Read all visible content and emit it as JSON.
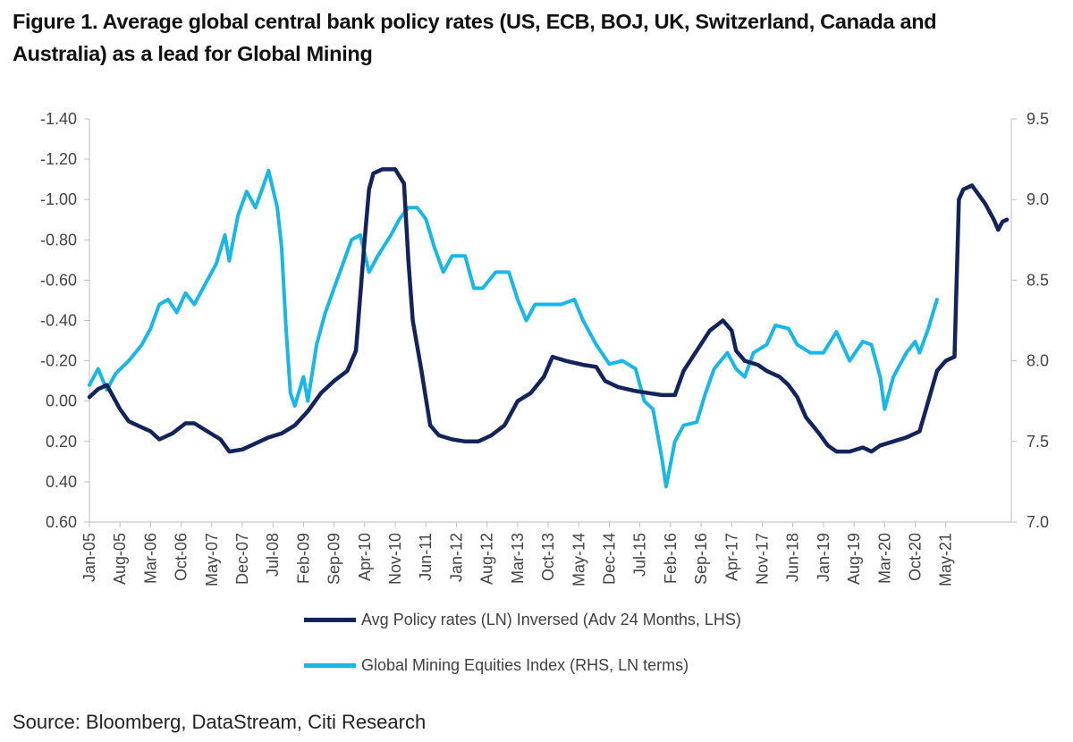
{
  "title_line1": "Figure 1. Average global central bank policy rates (US, ECB, BOJ, UK, Switzerland, Canada and",
  "title_line2": "Australia) as a lead for Global Mining",
  "source": "Source: Bloomberg, DataStream, Citi Research",
  "chart_data": {
    "type": "line",
    "title": "Figure 1. Average global central bank policy rates (US, ECB, BOJ, UK, Switzerland, Canada and Australia) as a lead for Global Mining",
    "x_tick_labels": [
      "Jan-05",
      "Aug-05",
      "Mar-06",
      "Oct-06",
      "May-07",
      "Dec-07",
      "Jul-08",
      "Feb-09",
      "Sep-09",
      "Apr-10",
      "Nov-10",
      "Jun-11",
      "Jan-12",
      "Aug-12",
      "Mar-13",
      "Oct-13",
      "May-14",
      "Dec-14",
      "Jul-15",
      "Feb-16",
      "Sep-16",
      "Apr-17",
      "Nov-17",
      "Jun-18",
      "Jan-19",
      "Aug-19",
      "Mar-20",
      "Oct-20",
      "May-21"
    ],
    "y_left": {
      "ticks": [
        "-1.40",
        "-1.20",
        "-1.00",
        "-0.80",
        "-0.60",
        "-0.40",
        "-0.20",
        "0.00",
        "0.20",
        "0.40",
        "0.60"
      ],
      "range": [
        -1.4,
        0.6
      ],
      "inverted": true
    },
    "y_right": {
      "ticks": [
        "9.5",
        "9.0",
        "8.5",
        "8.0",
        "7.5",
        "7.0"
      ],
      "range": [
        7.0,
        9.5
      ]
    },
    "series": [
      {
        "name": "Avg Policy rates (LN) Inversed (Adv 24 Months, LHS)",
        "color": "#13245b",
        "axis": "left",
        "points": [
          [
            "2005-01",
            -0.02
          ],
          [
            "2005-03",
            -0.06
          ],
          [
            "2005-05",
            -0.08
          ],
          [
            "2005-08",
            0.04
          ],
          [
            "2005-10",
            0.1
          ],
          [
            "2005-12",
            0.12
          ],
          [
            "2006-03",
            0.15
          ],
          [
            "2006-05",
            0.19
          ],
          [
            "2006-08",
            0.16
          ],
          [
            "2006-11",
            0.11
          ],
          [
            "2007-01",
            0.11
          ],
          [
            "2007-04",
            0.15
          ],
          [
            "2007-07",
            0.19
          ],
          [
            "2007-09",
            0.25
          ],
          [
            "2007-12",
            0.24
          ],
          [
            "2008-03",
            0.21
          ],
          [
            "2008-06",
            0.18
          ],
          [
            "2008-09",
            0.16
          ],
          [
            "2008-12",
            0.12
          ],
          [
            "2009-03",
            0.05
          ],
          [
            "2009-06",
            -0.04
          ],
          [
            "2009-09",
            -0.1
          ],
          [
            "2009-12",
            -0.15
          ],
          [
            "2010-02",
            -0.25
          ],
          [
            "2010-04",
            -0.8
          ],
          [
            "2010-05",
            -1.05
          ],
          [
            "2010-06",
            -1.13
          ],
          [
            "2010-08",
            -1.15
          ],
          [
            "2010-11",
            -1.15
          ],
          [
            "2011-01",
            -1.08
          ],
          [
            "2011-02",
            -0.7
          ],
          [
            "2011-03",
            -0.4
          ],
          [
            "2011-05",
            -0.15
          ],
          [
            "2011-07",
            0.12
          ],
          [
            "2011-09",
            0.17
          ],
          [
            "2011-12",
            0.19
          ],
          [
            "2012-03",
            0.2
          ],
          [
            "2012-06",
            0.2
          ],
          [
            "2012-09",
            0.17
          ],
          [
            "2012-12",
            0.12
          ],
          [
            "2013-03",
            0.0
          ],
          [
            "2013-06",
            -0.04
          ],
          [
            "2013-09",
            -0.12
          ],
          [
            "2013-11",
            -0.22
          ],
          [
            "2014-02",
            -0.2
          ],
          [
            "2014-06",
            -0.18
          ],
          [
            "2014-09",
            -0.17
          ],
          [
            "2014-11",
            -0.1
          ],
          [
            "2015-02",
            -0.07
          ],
          [
            "2015-06",
            -0.05
          ],
          [
            "2015-09",
            -0.04
          ],
          [
            "2015-12",
            -0.03
          ],
          [
            "2016-03",
            -0.03
          ],
          [
            "2016-05",
            -0.15
          ],
          [
            "2016-08",
            -0.25
          ],
          [
            "2016-11",
            -0.35
          ],
          [
            "2017-02",
            -0.4
          ],
          [
            "2017-04",
            -0.35
          ],
          [
            "2017-05",
            -0.25
          ],
          [
            "2017-07",
            -0.2
          ],
          [
            "2017-10",
            -0.18
          ],
          [
            "2017-12",
            -0.15
          ],
          [
            "2018-03",
            -0.12
          ],
          [
            "2018-05",
            -0.08
          ],
          [
            "2018-07",
            -0.02
          ],
          [
            "2018-09",
            0.08
          ],
          [
            "2018-12",
            0.16
          ],
          [
            "2019-02",
            0.22
          ],
          [
            "2019-04",
            0.25
          ],
          [
            "2019-07",
            0.25
          ],
          [
            "2019-10",
            0.23
          ],
          [
            "2019-12",
            0.25
          ],
          [
            "2020-02",
            0.22
          ],
          [
            "2020-05",
            0.2
          ],
          [
            "2020-08",
            0.18
          ],
          [
            "2020-11",
            0.15
          ],
          [
            "2021-01",
            0.0
          ],
          [
            "2021-03",
            -0.15
          ],
          [
            "2021-05",
            -0.2
          ],
          [
            "2021-07",
            -0.22
          ],
          [
            "2021-08",
            -1.0
          ],
          [
            "2021-09",
            -1.05
          ],
          [
            "2021-11",
            -1.07
          ],
          [
            "2021-12",
            -1.04
          ],
          [
            "2022-02",
            -0.98
          ],
          [
            "2022-04",
            -0.9
          ],
          [
            "2022-05",
            -0.85
          ],
          [
            "2022-06",
            -0.89
          ],
          [
            "2022-07",
            -0.9
          ]
        ]
      },
      {
        "name": "Global Mining Equities Index (RHS, LN terms)",
        "color": "#19b6e8",
        "axis": "right",
        "points": [
          [
            "2005-01",
            7.85
          ],
          [
            "2005-03",
            7.95
          ],
          [
            "2005-05",
            7.82
          ],
          [
            "2005-07",
            7.92
          ],
          [
            "2005-10",
            8.0
          ],
          [
            "2006-01",
            8.1
          ],
          [
            "2006-03",
            8.2
          ],
          [
            "2006-05",
            8.35
          ],
          [
            "2006-07",
            8.38
          ],
          [
            "2006-09",
            8.3
          ],
          [
            "2006-11",
            8.42
          ],
          [
            "2007-01",
            8.35
          ],
          [
            "2007-04",
            8.5
          ],
          [
            "2007-06",
            8.6
          ],
          [
            "2007-08",
            8.78
          ],
          [
            "2007-09",
            8.62
          ],
          [
            "2007-11",
            8.9
          ],
          [
            "2008-01",
            9.05
          ],
          [
            "2008-03",
            8.95
          ],
          [
            "2008-05",
            9.1
          ],
          [
            "2008-06",
            9.18
          ],
          [
            "2008-08",
            8.95
          ],
          [
            "2008-09",
            8.7
          ],
          [
            "2008-10",
            8.2
          ],
          [
            "2008-11",
            7.8
          ],
          [
            "2008-12",
            7.72
          ],
          [
            "2009-02",
            7.9
          ],
          [
            "2009-03",
            7.75
          ],
          [
            "2009-05",
            8.1
          ],
          [
            "2009-07",
            8.3
          ],
          [
            "2009-09",
            8.45
          ],
          [
            "2009-11",
            8.6
          ],
          [
            "2010-01",
            8.75
          ],
          [
            "2010-03",
            8.78
          ],
          [
            "2010-05",
            8.55
          ],
          [
            "2010-07",
            8.65
          ],
          [
            "2010-10",
            8.78
          ],
          [
            "2010-12",
            8.88
          ],
          [
            "2011-02",
            8.95
          ],
          [
            "2011-04",
            8.95
          ],
          [
            "2011-06",
            8.88
          ],
          [
            "2011-08",
            8.7
          ],
          [
            "2011-10",
            8.55
          ],
          [
            "2011-12",
            8.65
          ],
          [
            "2012-03",
            8.65
          ],
          [
            "2012-05",
            8.45
          ],
          [
            "2012-07",
            8.45
          ],
          [
            "2012-10",
            8.55
          ],
          [
            "2013-01",
            8.55
          ],
          [
            "2013-03",
            8.38
          ],
          [
            "2013-05",
            8.25
          ],
          [
            "2013-07",
            8.35
          ],
          [
            "2013-10",
            8.35
          ],
          [
            "2014-01",
            8.35
          ],
          [
            "2014-04",
            8.38
          ],
          [
            "2014-06",
            8.25
          ],
          [
            "2014-09",
            8.1
          ],
          [
            "2014-12",
            7.98
          ],
          [
            "2015-03",
            8.0
          ],
          [
            "2015-06",
            7.95
          ],
          [
            "2015-08",
            7.75
          ],
          [
            "2015-10",
            7.7
          ],
          [
            "2015-12",
            7.4
          ],
          [
            "2016-01",
            7.22
          ],
          [
            "2016-03",
            7.5
          ],
          [
            "2016-05",
            7.6
          ],
          [
            "2016-08",
            7.62
          ],
          [
            "2016-10",
            7.8
          ],
          [
            "2016-12",
            7.95
          ],
          [
            "2017-03",
            8.05
          ],
          [
            "2017-05",
            7.95
          ],
          [
            "2017-07",
            7.9
          ],
          [
            "2017-09",
            8.05
          ],
          [
            "2017-12",
            8.1
          ],
          [
            "2018-02",
            8.22
          ],
          [
            "2018-05",
            8.2
          ],
          [
            "2018-07",
            8.1
          ],
          [
            "2018-10",
            8.05
          ],
          [
            "2019-01",
            8.05
          ],
          [
            "2019-04",
            8.18
          ],
          [
            "2019-07",
            8.0
          ],
          [
            "2019-10",
            8.12
          ],
          [
            "2019-12",
            8.1
          ],
          [
            "2020-02",
            7.9
          ],
          [
            "2020-03",
            7.7
          ],
          [
            "2020-05",
            7.9
          ],
          [
            "2020-08",
            8.05
          ],
          [
            "2020-10",
            8.12
          ],
          [
            "2020-11",
            8.05
          ],
          [
            "2021-01",
            8.2
          ],
          [
            "2021-03",
            8.38
          ]
        ]
      }
    ],
    "legend": "bottom",
    "grid": false
  }
}
